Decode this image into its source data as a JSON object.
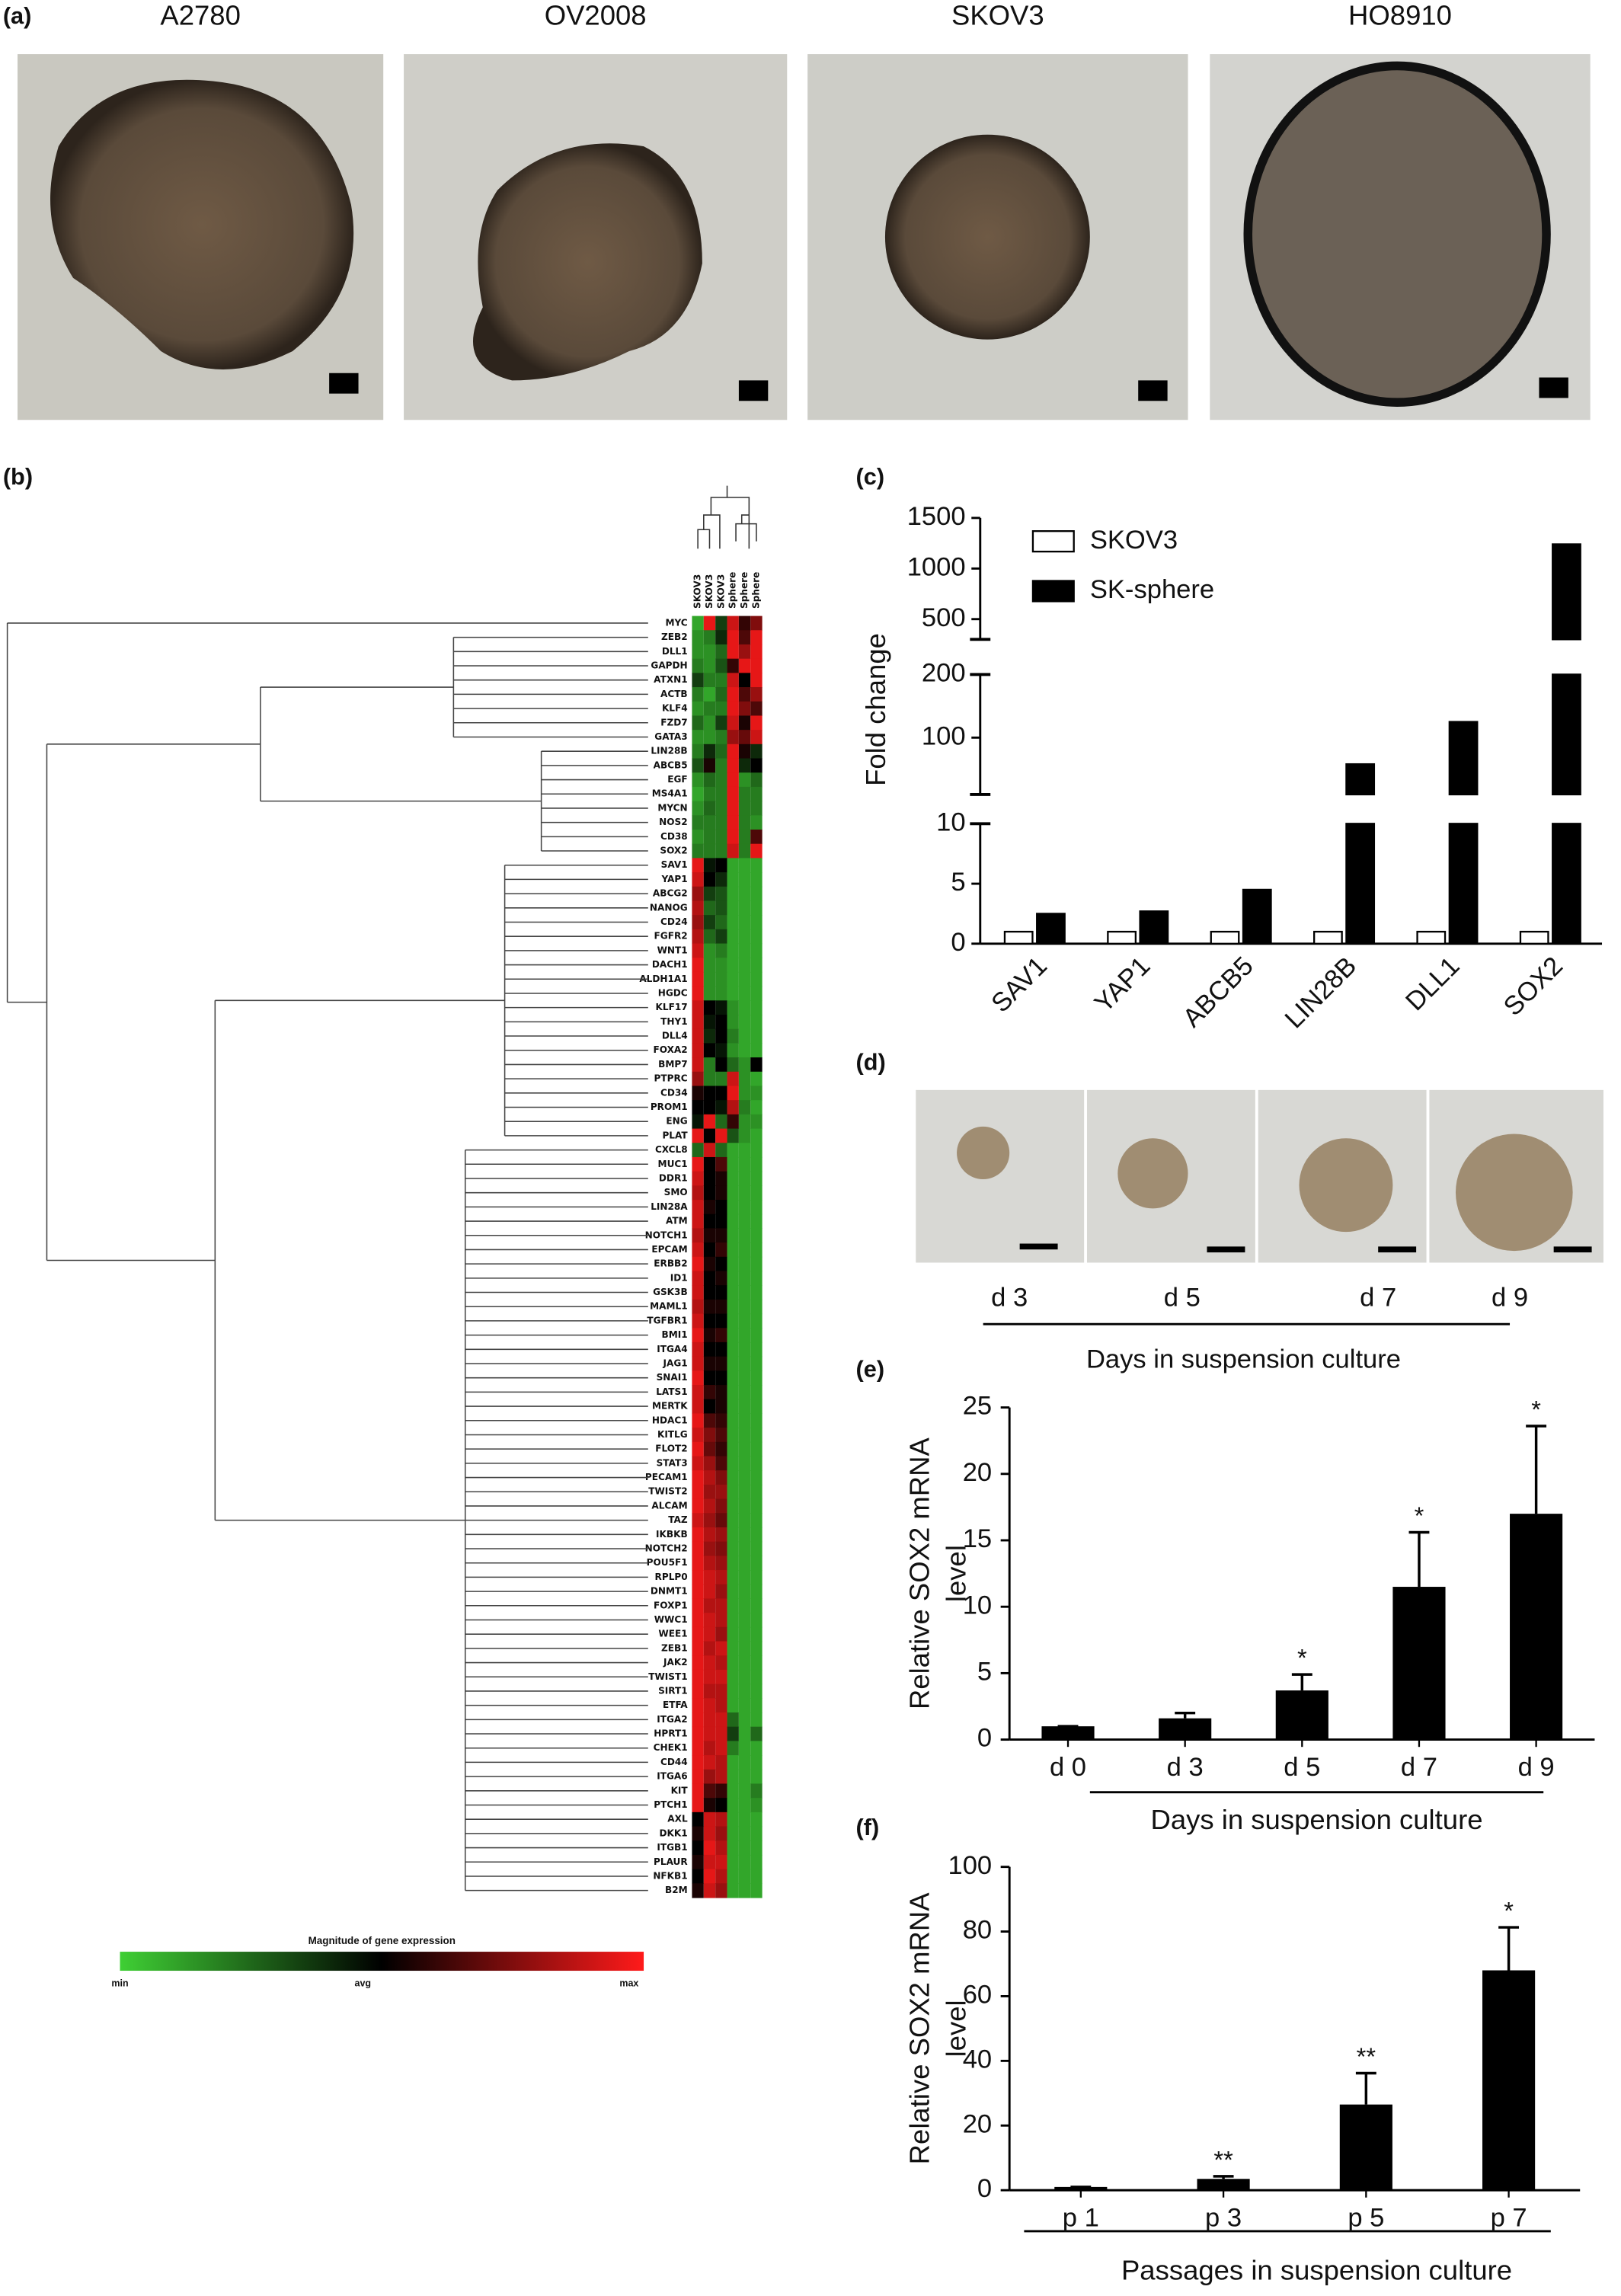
{
  "panel_labels": [
    "(a)",
    "(b)",
    "(c)",
    "(d)",
    "(e)",
    "(f)"
  ],
  "panel_a": {
    "titles": [
      "A2780",
      "OV2008",
      "SKOV3",
      "HO8910"
    ]
  },
  "panel_d": {
    "labels": [
      "d 3",
      "d 5",
      "d 7",
      "d 9"
    ],
    "xlabel": "Days in suspension culture"
  },
  "chart_data": [
    {
      "type": "heatmap",
      "columns": [
        "SKOV3",
        "SKOV3",
        "SKOV3",
        "Sphere",
        "Sphere",
        "Sphere"
      ],
      "rows": [
        "MYC",
        "ZEB2",
        "DLL1",
        "GAPDH",
        "ATXN1",
        "ACTB",
        "KLF4",
        "FZD7",
        "GATA3",
        "LIN28B",
        "ABCB5",
        "EGF",
        "MS4A1",
        "MYCN",
        "NOS2",
        "CD38",
        "SOX2",
        "SAV1",
        "YAP1",
        "ABCG2",
        "NANOG",
        "CD24",
        "FGFR2",
        "WNT1",
        "DACH1",
        "ALDH1A1",
        "HGDC",
        "KLF17",
        "THY1",
        "DLL4",
        "FOXA2",
        "BMP7",
        "PTPRC",
        "CD34",
        "PROM1",
        "ENG",
        "PLAT",
        "CXCL8",
        "MUC1",
        "DDR1",
        "SMO",
        "LIN28A",
        "ATM",
        "NOTCH1",
        "EPCAM",
        "ERBB2",
        "ID1",
        "GSK3B",
        "MAML1",
        "TGFBR1",
        "BMI1",
        "ITGA4",
        "JAG1",
        "SNAI1",
        "LATS1",
        "MERTK",
        "HDAC1",
        "KITLG",
        "FLOT2",
        "STAT3",
        "PECAM1",
        "TWIST2",
        "ALCAM",
        "TAZ",
        "IKBKB",
        "NOTCH2",
        "POU5F1",
        "RPLP0",
        "DNMT1",
        "FOXP1",
        "WWC1",
        "WEE1",
        "ZEB1",
        "JAK2",
        "TWIST1",
        "SIRT1",
        "ETFA",
        "ITGA2",
        "HPRT1",
        "CHEK1",
        "CD44",
        "ITGA6",
        "KIT",
        "PTCH1",
        "AXL",
        "DKK1",
        "ITGB1",
        "PLAUR",
        "NFKB1",
        "B2M"
      ],
      "values": [
        [
          -0.8,
          0.9,
          -0.3,
          0.8,
          0.2,
          0.5
        ],
        [
          -0.7,
          -0.6,
          -0.2,
          0.9,
          0.3,
          0.9
        ],
        [
          -0.7,
          -0.7,
          -0.5,
          0.9,
          0.6,
          0.9
        ],
        [
          -0.6,
          -0.7,
          -0.4,
          0.2,
          0.9,
          0.9
        ],
        [
          -0.3,
          -0.6,
          -0.6,
          0.8,
          0,
          0.9
        ],
        [
          -0.6,
          -0.8,
          -0.5,
          0.9,
          0.3,
          0.6
        ],
        [
          -0.7,
          -0.6,
          -0.6,
          0.9,
          0.5,
          0.3
        ],
        [
          -0.5,
          -0.7,
          -0.3,
          0.8,
          0.1,
          0.9
        ],
        [
          -0.7,
          -0.7,
          -0.6,
          0.6,
          0.4,
          0.8
        ],
        [
          -0.6,
          -0.2,
          -0.5,
          0.9,
          0.1,
          -0.2
        ],
        [
          -0.4,
          0.1,
          -0.6,
          0.9,
          -0.2,
          0
        ],
        [
          -0.7,
          -0.5,
          -0.6,
          0.9,
          -0.7,
          -0.5
        ],
        [
          -0.8,
          -0.6,
          -0.6,
          0.9,
          -0.6,
          -0.6
        ],
        [
          -0.7,
          -0.5,
          -0.6,
          0.9,
          -0.6,
          -0.6
        ],
        [
          -0.6,
          -0.6,
          -0.6,
          0.9,
          -0.6,
          -0.7
        ],
        [
          -0.7,
          -0.6,
          -0.6,
          0.9,
          -0.6,
          0.3
        ],
        [
          -0.6,
          -0.6,
          -0.6,
          0.8,
          -0.6,
          0.9
        ],
        [
          0.9,
          -0.1,
          0,
          -0.8,
          -0.8,
          -0.8
        ],
        [
          0.8,
          0,
          -0.2,
          -0.8,
          -0.8,
          -0.8
        ],
        [
          0.6,
          -0.3,
          -0.4,
          -0.8,
          -0.8,
          -0.8
        ],
        [
          0.7,
          -0.5,
          -0.4,
          -0.8,
          -0.8,
          -0.8
        ],
        [
          0.6,
          -0.3,
          -0.5,
          -0.8,
          -0.8,
          -0.8
        ],
        [
          0.7,
          -0.5,
          -0.3,
          -0.8,
          -0.8,
          -0.8
        ],
        [
          0.8,
          -0.7,
          -0.6,
          -0.8,
          -0.8,
          -0.8
        ],
        [
          0.9,
          -0.7,
          -0.7,
          -0.8,
          -0.8,
          -0.8
        ],
        [
          0.9,
          -0.7,
          -0.7,
          -0.8,
          -0.8,
          -0.8
        ],
        [
          0.9,
          -0.7,
          -0.7,
          -0.8,
          -0.8,
          -0.8
        ],
        [
          0.8,
          0,
          -0.1,
          -0.7,
          -0.8,
          -0.8
        ],
        [
          0.8,
          -0.1,
          0,
          -0.7,
          -0.8,
          -0.8
        ],
        [
          0.8,
          -0.2,
          0,
          -0.6,
          -0.8,
          -0.8
        ],
        [
          0.8,
          0,
          -0.1,
          -0.7,
          -0.8,
          -0.8
        ],
        [
          0.8,
          -0.6,
          0,
          -0.5,
          -0.7,
          0
        ],
        [
          0.6,
          -0.6,
          -0.6,
          0.8,
          -0.7,
          -0.8
        ],
        [
          0.1,
          0,
          0,
          0.9,
          -0.7,
          -0.7
        ],
        [
          0,
          0,
          -0.1,
          0.7,
          -0.6,
          -0.8
        ],
        [
          -0.1,
          0.9,
          -0.5,
          0.2,
          -0.7,
          -0.7
        ],
        [
          0.9,
          0,
          0.9,
          -0.4,
          -0.7,
          -0.8
        ],
        [
          -0.5,
          0.8,
          -0.5,
          -0.8,
          -0.8,
          -0.8
        ],
        [
          0.9,
          0,
          0.3,
          -0.8,
          -0.8,
          -0.8
        ],
        [
          0.8,
          0,
          0.1,
          -0.8,
          -0.8,
          -0.8
        ],
        [
          0.7,
          0,
          0.1,
          -0.8,
          -0.8,
          -0.8
        ],
        [
          0.8,
          0.1,
          0,
          -0.8,
          -0.8,
          -0.8
        ],
        [
          0.8,
          0,
          0,
          -0.8,
          -0.8,
          -0.8
        ],
        [
          0.7,
          0.1,
          0.1,
          -0.8,
          -0.8,
          -0.8
        ],
        [
          0.8,
          0,
          0.2,
          -0.8,
          -0.8,
          -0.8
        ],
        [
          0.9,
          0.1,
          0,
          -0.8,
          -0.8,
          -0.8
        ],
        [
          0.8,
          0,
          0.1,
          -0.8,
          -0.8,
          -0.8
        ],
        [
          0.8,
          0,
          0,
          -0.8,
          -0.8,
          -0.8
        ],
        [
          0.7,
          0.1,
          0.1,
          -0.8,
          -0.8,
          -0.8
        ],
        [
          0.8,
          0,
          0,
          -0.8,
          -0.8,
          -0.8
        ],
        [
          0.9,
          0.1,
          0.2,
          -0.8,
          -0.8,
          -0.8
        ],
        [
          0.8,
          0,
          0,
          -0.8,
          -0.8,
          -0.8
        ],
        [
          0.8,
          0.1,
          0.1,
          -0.8,
          -0.8,
          -0.8
        ],
        [
          0.9,
          0,
          0,
          -0.8,
          -0.8,
          -0.8
        ],
        [
          0.8,
          0.2,
          0.1,
          -0.8,
          -0.8,
          -0.8
        ],
        [
          0.8,
          0,
          0.1,
          -0.8,
          -0.8,
          -0.8
        ],
        [
          0.9,
          0.3,
          0.2,
          -0.8,
          -0.8,
          -0.8
        ],
        [
          0.8,
          0.5,
          0.3,
          -0.8,
          -0.8,
          -0.8
        ],
        [
          0.9,
          0.4,
          0.2,
          -0.8,
          -0.8,
          -0.8
        ],
        [
          0.8,
          0.6,
          0.3,
          -0.8,
          -0.8,
          -0.8
        ],
        [
          0.9,
          0.7,
          0.5,
          -0.8,
          -0.8,
          -0.8
        ],
        [
          0.9,
          0.6,
          0.6,
          -0.8,
          -0.8,
          -0.8
        ],
        [
          0.9,
          0.7,
          0.5,
          -0.8,
          -0.8,
          -0.8
        ],
        [
          0.8,
          0.6,
          0.4,
          -0.8,
          -0.8,
          -0.8
        ],
        [
          0.9,
          0.7,
          0.6,
          -0.8,
          -0.8,
          -0.8
        ],
        [
          0.9,
          0.6,
          0.5,
          -0.8,
          -0.8,
          -0.8
        ],
        [
          0.9,
          0.7,
          0.6,
          -0.8,
          -0.8,
          -0.8
        ],
        [
          0.9,
          0.8,
          0.7,
          -0.8,
          -0.8,
          -0.8
        ],
        [
          0.9,
          0.8,
          0.6,
          -0.8,
          -0.8,
          -0.8
        ],
        [
          0.9,
          0.7,
          0.7,
          -0.8,
          -0.8,
          -0.8
        ],
        [
          0.9,
          0.8,
          0.7,
          -0.8,
          -0.8,
          -0.8
        ],
        [
          0.9,
          0.8,
          0.6,
          -0.8,
          -0.8,
          -0.8
        ],
        [
          0.9,
          0.7,
          0.8,
          -0.8,
          -0.8,
          -0.8
        ],
        [
          0.9,
          0.8,
          0.7,
          -0.8,
          -0.8,
          -0.8
        ],
        [
          0.9,
          0.8,
          0.8,
          -0.8,
          -0.8,
          -0.8
        ],
        [
          0.9,
          0.7,
          0.7,
          -0.8,
          -0.8,
          -0.8
        ],
        [
          0.9,
          0.8,
          0.7,
          -0.8,
          -0.8,
          -0.8
        ],
        [
          0.9,
          0.8,
          0.8,
          -0.5,
          -0.8,
          -0.8
        ],
        [
          0.9,
          0.8,
          0.8,
          -0.3,
          -0.8,
          -0.5
        ],
        [
          0.9,
          0.7,
          0.8,
          -0.6,
          -0.8,
          -0.8
        ],
        [
          0.9,
          0.8,
          0.7,
          -0.8,
          -0.8,
          -0.8
        ],
        [
          0.9,
          0.6,
          0.7,
          -0.8,
          -0.8,
          -0.8
        ],
        [
          0.9,
          0.3,
          0.2,
          -0.8,
          -0.8,
          -0.6
        ],
        [
          0.9,
          0.1,
          0,
          -0.8,
          -0.8,
          -0.7
        ],
        [
          0,
          0.8,
          0.7,
          -0.8,
          -0.8,
          -0.8
        ],
        [
          0.1,
          0.8,
          0.6,
          -0.8,
          -0.8,
          -0.8
        ],
        [
          0,
          0.9,
          0.7,
          -0.8,
          -0.8,
          -0.8
        ],
        [
          0.1,
          0.8,
          0.8,
          -0.8,
          -0.8,
          -0.8
        ],
        [
          0,
          0.9,
          0.7,
          -0.8,
          -0.8,
          -0.8
        ],
        [
          0.1,
          0.8,
          0.6,
          -0.8,
          -0.8,
          -0.8
        ]
      ],
      "colors": [
        "#3fcf34",
        "#000000",
        "#ff1a1a"
      ],
      "colorbar": {
        "title": "Magnitude of gene expression",
        "labels": [
          "min",
          "avg",
          "max"
        ]
      }
    },
    {
      "type": "broken-bar",
      "ylabel": "Fold change",
      "categories": [
        "SAV1",
        "YAP1",
        "ABCB5",
        "LIN28B",
        "DLL1",
        "SOX2"
      ],
      "series": [
        {
          "name": "SKOV3",
          "color": "#ffffff",
          "values": [
            1,
            1,
            1,
            1,
            1,
            1
          ]
        },
        {
          "name": "SK-sphere",
          "color": "#000000",
          "values": [
            2.5,
            2.7,
            4.5,
            58,
            125,
            1240
          ]
        }
      ],
      "segments": [
        {
          "ylim": [
            0,
            10
          ],
          "yticks": [
            0,
            5,
            10
          ]
        },
        {
          "ylim": [
            10,
            200
          ],
          "yticks": [
            100,
            200
          ]
        },
        {
          "ylim": [
            300,
            1500
          ],
          "yticks": [
            500,
            1000,
            1500
          ]
        }
      ]
    },
    {
      "type": "bar",
      "ylabel": [
        "Relative SOX2 mRNA",
        "level"
      ],
      "xlabel": "Days in suspension culture",
      "categories": [
        "d 0",
        "d 3",
        "d 5",
        "d 7",
        "d 9"
      ],
      "values": [
        1,
        1.6,
        3.7,
        11.5,
        17
      ],
      "errors": [
        0,
        0.4,
        1.2,
        4.1,
        6.6
      ],
      "annotations": [
        null,
        null,
        "*",
        "*",
        "*"
      ],
      "color": "#000000",
      "ylim": [
        0,
        25
      ],
      "yticks": [
        0,
        5,
        10,
        15,
        20,
        25
      ]
    },
    {
      "type": "bar",
      "ylabel": [
        "Relative SOX2 mRNA",
        "level"
      ],
      "xlabel": "Passages in suspension culture",
      "categories": [
        "p 1",
        "p 3",
        "p 5",
        "p 7"
      ],
      "values": [
        1,
        3.5,
        26.5,
        68
      ],
      "errors": [
        0,
        0.8,
        9.7,
        13.3
      ],
      "annotations": [
        null,
        "**",
        "**",
        "*"
      ],
      "color": "#000000",
      "ylim": [
        0,
        100
      ],
      "yticks": [
        0,
        20,
        40,
        60,
        80,
        100
      ]
    }
  ]
}
